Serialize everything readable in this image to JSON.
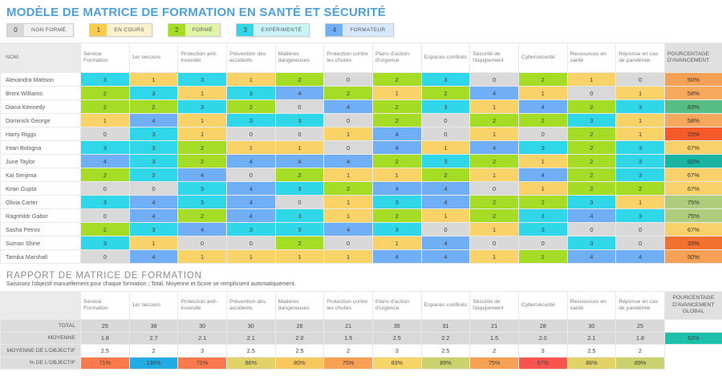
{
  "title": "MODÈLE DE MATRICE DE FORMATION EN SANTÉ ET SÉCURITÉ",
  "legend": [
    {
      "value": "0",
      "label": "NON FORMÉ",
      "box": "#D9D9D9",
      "bg": "#F2F2F2"
    },
    {
      "value": "1",
      "label": "EN COURS",
      "box": "#FBCC50",
      "bg": "#FCF2CF"
    },
    {
      "value": "2",
      "label": "FORMÉ",
      "box": "#A5DC26",
      "bg": "#DFF5A6"
    },
    {
      "value": "3",
      "label": "EXPÉRIMENTÉ",
      "box": "#2FD7E9",
      "bg": "#C9F5F9"
    },
    {
      "value": "4",
      "label": "FORMATEUR",
      "box": "#70AFF5",
      "bg": "#D6E9FC"
    }
  ],
  "value_colors": {
    "0": "#D9D9D9",
    "1": "#F9D368",
    "2": "#A5DC26",
    "3": "#2FD7E9",
    "4": "#70AFF5"
  },
  "matrix": {
    "name_header": "NOM",
    "columns": [
      "Service Formation",
      "1er secours",
      "Protection anti-incendie",
      "Prévention des accidents",
      "Matières dangereuses",
      "Protection contre les chutes",
      "Plans d'action d'urgence",
      "Espaces confinés",
      "Sécurité de l'équipement",
      "Cybersécurité",
      "Ressources en santé",
      "Réponse en cas de pandémie"
    ],
    "pct_header": "POURCENTAGE D'AVANCEMENT",
    "rows": [
      {
        "name": "Alexandra Mattson",
        "scores": [
          3,
          1,
          3,
          1,
          2,
          0,
          2,
          3,
          0,
          2,
          1,
          0
        ],
        "pct": "50%",
        "pct_color": "#F6A155"
      },
      {
        "name": "Brent Williams",
        "scores": [
          2,
          3,
          1,
          3,
          4,
          2,
          1,
          2,
          4,
          1,
          0,
          1
        ],
        "pct": "58%",
        "pct_color": "#F6A85C"
      },
      {
        "name": "Diana Kennedy",
        "scores": [
          2,
          2,
          3,
          2,
          0,
          4,
          2,
          3,
          1,
          4,
          2,
          3
        ],
        "pct": "83%",
        "pct_color": "#57BD84"
      },
      {
        "name": "Dominick George",
        "scores": [
          1,
          4,
          1,
          3,
          3,
          0,
          2,
          0,
          2,
          2,
          3,
          1
        ],
        "pct": "58%",
        "pct_color": "#F6A85C"
      },
      {
        "name": "Harry Riggs",
        "scores": [
          0,
          3,
          1,
          0,
          0,
          1,
          4,
          0,
          1,
          0,
          2,
          1
        ],
        "pct": "25%",
        "pct_color": "#F55B28"
      },
      {
        "name": "Intan Bologna",
        "scores": [
          3,
          3,
          2,
          1,
          1,
          0,
          4,
          1,
          4,
          3,
          2,
          3
        ],
        "pct": "67%",
        "pct_color": "#F8D16A"
      },
      {
        "name": "June Taylor",
        "scores": [
          4,
          3,
          2,
          4,
          4,
          4,
          2,
          3,
          2,
          1,
          2,
          3
        ],
        "pct": "92%",
        "pct_color": "#19B4A2"
      },
      {
        "name": "Kai Senjima",
        "scores": [
          2,
          3,
          4,
          0,
          2,
          1,
          1,
          2,
          1,
          4,
          2,
          3
        ],
        "pct": "67%",
        "pct_color": "#F8D16A"
      },
      {
        "name": "Kiran Gupta",
        "scores": [
          0,
          0,
          3,
          4,
          3,
          2,
          4,
          4,
          0,
          1,
          2,
          2
        ],
        "pct": "67%",
        "pct_color": "#F8D16A"
      },
      {
        "name": "Olivia Carter",
        "scores": [
          3,
          4,
          3,
          4,
          0,
          1,
          3,
          4,
          2,
          2,
          3,
          1
        ],
        "pct": "75%",
        "pct_color": "#ADCD7D"
      },
      {
        "name": "Ragnhildr Gabor",
        "scores": [
          0,
          4,
          2,
          4,
          3,
          1,
          2,
          1,
          2,
          3,
          4,
          3
        ],
        "pct": "75%",
        "pct_color": "#ADCD7D"
      },
      {
        "name": "Sasha Petrov",
        "scores": [
          2,
          3,
          4,
          3,
          3,
          4,
          3,
          0,
          1,
          3,
          0,
          0
        ],
        "pct": "67%",
        "pct_color": "#F8D16A"
      },
      {
        "name": "Suman Shine",
        "scores": [
          3,
          1,
          0,
          0,
          2,
          0,
          1,
          4,
          0,
          0,
          3,
          0
        ],
        "pct": "33%",
        "pct_color": "#F4702E"
      },
      {
        "name": "Tamika Marshall",
        "scores": [
          0,
          4,
          1,
          1,
          1,
          1,
          4,
          4,
          1,
          2,
          4,
          4
        ],
        "pct": "50%",
        "pct_color": "#F6A155"
      }
    ]
  },
  "report": {
    "title": "RAPPORT DE MATRICE DE FORMATION",
    "subtitle": "Saisissez l'objectif manuellement pour chaque formation ; Total, Moyenne et Score se remplissent automatiquement.",
    "global_header": "POURCENTAGE D'AVANCEMENT GLOBAL",
    "global_pct": "62%",
    "global_color": "#1FBFAD",
    "rows": [
      {
        "label": "TOTAL",
        "values": [
          "25",
          "38",
          "30",
          "30",
          "28",
          "21",
          "35",
          "31",
          "21",
          "28",
          "30",
          "25"
        ],
        "cell_bg": "#D9D9D9"
      },
      {
        "label": "MOYENNE",
        "values": [
          "1.8",
          "2.7",
          "2.1",
          "2.1",
          "2.0",
          "1.5",
          "2.5",
          "2.2",
          "1.5",
          "2.0",
          "2.1",
          "1.8"
        ],
        "cell_bg": "#D9D9D9"
      },
      {
        "label": "MOYENNE DE L'OBJECTIF",
        "values": [
          "2.5",
          "2",
          "3",
          "2.5",
          "2.5",
          "2",
          "3",
          "2.5",
          "2",
          "3",
          "2.5",
          "2"
        ],
        "cell_bg": "#FFFFFF"
      },
      {
        "label": "% DE L'OBJECTIF",
        "values": [
          "71%",
          "136%",
          "71%",
          "86%",
          "80%",
          "75%",
          "83%",
          "89%",
          "75%",
          "67%",
          "86%",
          "89%"
        ],
        "colors": [
          "#F97B4D",
          "#23ACE3",
          "#F97B4D",
          "#E2D369",
          "#F8C75F",
          "#F7A155",
          "#F7D466",
          "#CBD16E",
          "#F7A155",
          "#F7544E",
          "#E2D369",
          "#CBD16E"
        ]
      }
    ]
  }
}
